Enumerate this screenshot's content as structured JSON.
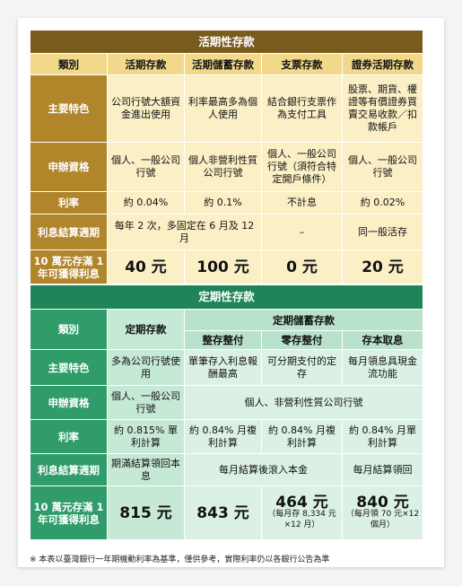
{
  "demand": {
    "title": "活期性存款",
    "headers": [
      "類別",
      "活期存款",
      "活期儲蓄存款",
      "支票存款",
      "證券活期存款"
    ],
    "features": {
      "label": "主要特色",
      "values": [
        "公司行號大額資金進出使用",
        "利率最高多為個人使用",
        "結合銀行支票作為支付工具",
        "股票、期貨、權證等有價證券買賣交易收款／扣款帳戶"
      ]
    },
    "eligibility": {
      "label": "申辦資格",
      "values": [
        "個人、一般公司行號",
        "個人非營利性質公司行號",
        "個人、一般公司行號（須符合特定開戶條件）",
        "個人、一般公司行號"
      ]
    },
    "rate": {
      "label": "利率",
      "values": [
        "約 0.04%",
        "約 0.1%",
        "不計息",
        "約 0.02%"
      ]
    },
    "cycle": {
      "label": "利息結算週期",
      "merged": "每年 2 次，多固定在 6 月及 12 月",
      "checking": "–",
      "securities": "同一般活存"
    },
    "yield": {
      "label": "10 萬元存滿 1 年可獲得利息",
      "values": [
        "40 元",
        "100 元",
        "0 元",
        "20 元"
      ]
    }
  },
  "time": {
    "title": "定期性存款",
    "category_label": "類別",
    "fixed_header": "定期存款",
    "savings_header": "定期儲蓄存款",
    "sub_headers": [
      "整存整付",
      "零存整付",
      "存本取息"
    ],
    "features": {
      "label": "主要特色",
      "fixed": "多為公司行號使用",
      "values": [
        "單筆存入利息報酬最高",
        "可分期支付的定存",
        "每月領息具現金流功能"
      ]
    },
    "eligibility": {
      "label": "申辦資格",
      "fixed": "個人、一般公司行號",
      "savings": "個人、非營利性質公司行號"
    },
    "rate": {
      "label": "利率",
      "fixed": "約 0.815% 單利計算",
      "values": [
        "約 0.84% 月複利計算",
        "約 0.84% 月複利計算",
        "約 0.84% 月單利計算"
      ]
    },
    "cycle": {
      "label": "利息結算週期",
      "fixed": "期滿結算領回本息",
      "merged": "每月結算後滾入本金",
      "last": "每月結算領回"
    },
    "yield": {
      "label": "10 萬元存滿 1 年可獲得利息",
      "fixed": "815 元",
      "v1": "843 元",
      "v2": "464 元",
      "v2_note": "（每月存 8,334 元×12 月）",
      "v3": "840 元",
      "v3_note": "（每月領 70 元×12 個月）"
    }
  },
  "footnote": "※ 本表以臺灣銀行一年期機動利率為基準，僅供參考，實際利率仍以各銀行公告為準"
}
